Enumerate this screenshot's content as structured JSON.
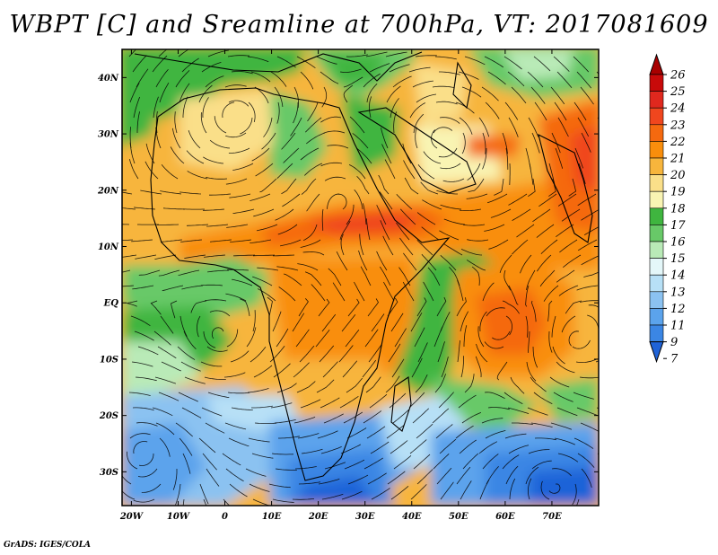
{
  "title": "WBPT [C] and Sreamline at 700hPa, VT: 2017081609",
  "credit": "GrADS: IGES/COLA",
  "map": {
    "lon_range": [
      -22,
      80
    ],
    "lat_range": [
      -36,
      45
    ],
    "lat_ticks": [
      {
        "value": 40,
        "label": "40N"
      },
      {
        "value": 30,
        "label": "30N"
      },
      {
        "value": 20,
        "label": "20N"
      },
      {
        "value": 10,
        "label": "10N"
      },
      {
        "value": 0,
        "label": "EQ"
      },
      {
        "value": -10,
        "label": "10S"
      },
      {
        "value": -20,
        "label": "20S"
      },
      {
        "value": -30,
        "label": "30S"
      }
    ],
    "lon_ticks": [
      {
        "value": -20,
        "label": "20W"
      },
      {
        "value": -10,
        "label": "10W"
      },
      {
        "value": 0,
        "label": "0"
      },
      {
        "value": 10,
        "label": "10E"
      },
      {
        "value": 20,
        "label": "20E"
      },
      {
        "value": 30,
        "label": "30E"
      },
      {
        "value": 40,
        "label": "40E"
      },
      {
        "value": 50,
        "label": "50E"
      },
      {
        "value": 60,
        "label": "60E"
      },
      {
        "value": 70,
        "label": "70E"
      }
    ]
  },
  "colorbar": {
    "levels": [
      "26",
      "25",
      "24",
      "23",
      "22",
      "21",
      "20",
      "19",
      "18",
      "17",
      "16",
      "15",
      "14",
      "13",
      "12",
      "11",
      "9",
      "7"
    ],
    "colors": [
      "#a80000",
      "#c80a0a",
      "#e0281e",
      "#f0461e",
      "#f5690f",
      "#f98e0c",
      "#f7b53c",
      "#fadf89",
      "#f9f4b3",
      "#3fb53f",
      "#68c968",
      "#b9eab7",
      "#e4f7f9",
      "#b7e0f6",
      "#8bc2f1",
      "#5ba3ec",
      "#3b86e4",
      "#1f63d8"
    ]
  }
}
